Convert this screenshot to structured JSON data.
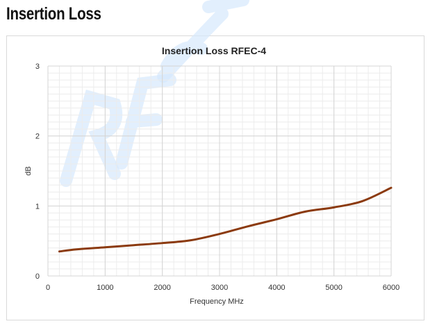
{
  "page": {
    "heading": "Insertion Loss",
    "watermark": "RF Exp"
  },
  "chart_data": {
    "type": "line",
    "title": "Insertion Loss RFEC-4",
    "xlabel": "Frequency MHz",
    "ylabel": "dB",
    "xlim": [
      0,
      6000
    ],
    "ylim": [
      0,
      3
    ],
    "xticks": [
      0,
      1000,
      2000,
      3000,
      4000,
      5000,
      6000
    ],
    "yticks": [
      0,
      1,
      2,
      3
    ],
    "grid": true,
    "series": [
      {
        "name": "RFEC-4",
        "color": "#8b3a0f",
        "x": [
          200,
          500,
          1000,
          1500,
          2000,
          2500,
          3000,
          3500,
          4000,
          4500,
          5000,
          5500,
          6000
        ],
        "y": [
          0.35,
          0.38,
          0.41,
          0.44,
          0.47,
          0.51,
          0.6,
          0.71,
          0.81,
          0.92,
          0.98,
          1.07,
          1.26
        ]
      }
    ]
  }
}
